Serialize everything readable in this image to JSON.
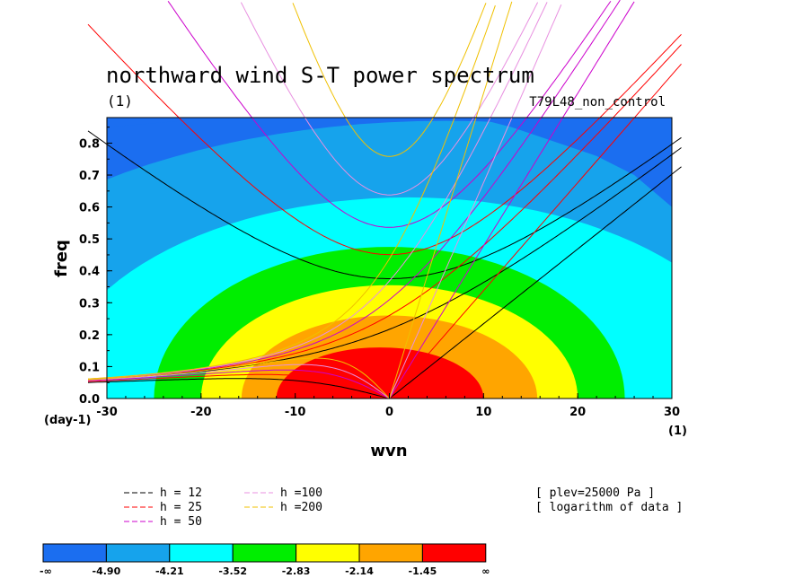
{
  "chart_data": {
    "type": "heatmap",
    "title": "northward wind S-T power spectrum",
    "subtitle_left": "(1)",
    "subtitle_right": "T79L48_non_control",
    "xlabel": "wvn",
    "ylabel": "freq",
    "x_unit_label": "(1)",
    "y_unit_label": "(day-1)",
    "xlim": [
      -30,
      30
    ],
    "ylim": [
      0,
      0.88
    ],
    "x_ticks": [
      "-30",
      "-20",
      "-10",
      "0",
      "10",
      "20",
      "30"
    ],
    "y_ticks": [
      "0.0",
      "0.1",
      "0.2",
      "0.3",
      "0.4",
      "0.5",
      "0.6",
      "0.7",
      "0.8"
    ],
    "info_lines": [
      "[ plev=25000 Pa ]",
      "[ logarithm of data ]"
    ],
    "colorbar": {
      "labels": [
        "-∞",
        "-4.90",
        "-4.21",
        "-3.52",
        "-2.83",
        "-2.14",
        "-1.45",
        "∞"
      ],
      "colors": [
        "#1b6ef0",
        "#16a3ec",
        "#00ffff",
        "#00ee00",
        "#ffff00",
        "#ffa500",
        "#ff0000"
      ]
    },
    "dispersion_legend": [
      {
        "label": "h = 12",
        "color": "#000000"
      },
      {
        "label": "h = 25",
        "color": "#ff0000"
      },
      {
        "label": "h = 50",
        "color": "#cc00cc"
      },
      {
        "label": "h =100",
        "color": "#e890e0"
      },
      {
        "label": "h =200",
        "color": "#f0c000"
      }
    ],
    "contour_levels": [
      {
        "label": "-4.90",
        "color": "#16a3ec",
        "a": 58,
        "b": 0.85,
        "cx": 6,
        "cy": 0.02
      },
      {
        "label": "-4.21",
        "color": "#00ffff",
        "a": 38,
        "b": 0.63,
        "cx": 2,
        "cy": 0.0
      },
      {
        "label": "-3.52",
        "color": "#00ee00",
        "a": 25,
        "b": 0.475,
        "cx": 0,
        "cy": 0.0
      },
      {
        "label": "-2.83",
        "color": "#ffff00",
        "a": 20,
        "b": 0.355,
        "cx": 0,
        "cy": 0.0
      },
      {
        "label": "-2.14",
        "color": "#ffa500",
        "a": 15.7,
        "b": 0.26,
        "cx": 0,
        "cy": 0.0
      },
      {
        "label": "-1.45",
        "color": "#ff0000",
        "a": 11,
        "b": 0.16,
        "cx": -1,
        "cy": 0.0
      }
    ],
    "dark_corners": [
      {
        "color": "#1b6ef0",
        "points": [
          [
            9,
            0.88
          ],
          [
            13,
            0.85
          ],
          [
            18,
            0.8
          ],
          [
            22,
            0.76
          ],
          [
            26,
            0.7
          ],
          [
            30,
            0.6
          ],
          [
            30,
            0.88
          ]
        ]
      },
      {
        "color": "#1b6ef0",
        "points": [
          [
            -30,
            0.85
          ],
          [
            -26,
            0.86
          ],
          [
            -20,
            0.875
          ],
          [
            -14,
            0.88
          ],
          [
            -30,
            0.88
          ]
        ]
      }
    ]
  }
}
